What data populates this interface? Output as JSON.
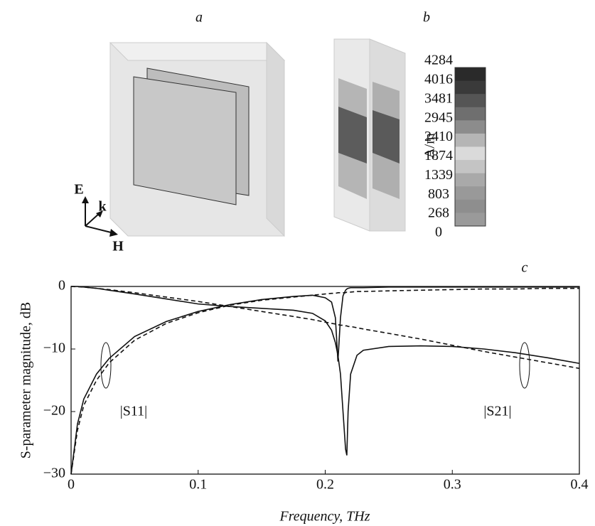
{
  "panels": {
    "a": {
      "label": "a",
      "axes": [
        "E",
        "k",
        "H"
      ]
    },
    "b": {
      "label": "b",
      "colorbar": {
        "unit": "A/m",
        "ticks": [
          4284,
          4016,
          3481,
          2945,
          2410,
          1874,
          1339,
          803,
          268,
          0
        ]
      }
    },
    "c": {
      "label": "c"
    }
  },
  "chart_data": {
    "type": "line",
    "xlabel": "Frequency, THz",
    "ylabel": "S-parameter magnitude, dB",
    "annotations": [
      "|S11|",
      "|S21|"
    ],
    "x": [
      0,
      0.005,
      0.01,
      0.02,
      0.03,
      0.05,
      0.075,
      0.1,
      0.125,
      0.15,
      0.175,
      0.19,
      0.2,
      0.205,
      0.208,
      0.21,
      0.212,
      0.214,
      0.216,
      0.217,
      0.218,
      0.22,
      0.225,
      0.23,
      0.25,
      0.275,
      0.3,
      0.325,
      0.35,
      0.375,
      0.4
    ],
    "series": [
      {
        "color": "#111",
        "dash": false,
        "values": [
          -30,
          -22,
          -18,
          -14,
          -11.5,
          -8,
          -5.6,
          -4,
          -2.9,
          -2.1,
          -1.6,
          -1.4,
          -1.8,
          -2.5,
          -5,
          -12,
          -5,
          -1.5,
          -0.6,
          -0.4,
          -0.3,
          -0.2,
          -0.2,
          -0.2,
          -0.1,
          -0.1,
          -0.1,
          -0.1,
          -0.1,
          -0.1,
          -0.1
        ]
      },
      {
        "color": "#111",
        "dash": true,
        "values": [
          -30,
          -23,
          -19,
          -15,
          -12.2,
          -8.6,
          -5.9,
          -4.2,
          -3,
          -2.2,
          -1.7,
          -1.4,
          -1.2,
          -1.1,
          -1.1,
          -1,
          -1,
          -1,
          -1,
          -0.9,
          -0.9,
          -0.9,
          -0.8,
          -0.8,
          -0.7,
          -0.6,
          -0.5,
          -0.4,
          -0.4,
          -0.3,
          -0.3
        ]
      },
      {
        "color": "#111",
        "dash": false,
        "values": [
          0,
          0,
          -0.1,
          -0.3,
          -0.6,
          -1.2,
          -2,
          -2.8,
          -3.2,
          -3.5,
          -3.8,
          -4.3,
          -5.5,
          -7,
          -9,
          -11,
          -14,
          -20,
          -26,
          -27,
          -20,
          -14,
          -11,
          -10.2,
          -9.6,
          -9.5,
          -9.6,
          -10,
          -10.6,
          -11.4,
          -12.3
        ]
      },
      {
        "color": "#111",
        "dash": true,
        "values": [
          0,
          -0.05,
          -0.1,
          -0.3,
          -0.5,
          -1,
          -1.7,
          -2.4,
          -3.2,
          -4,
          -4.8,
          -5.3,
          -5.7,
          -5.9,
          -6,
          -6.1,
          -6.2,
          -6.2,
          -6.3,
          -6.3,
          -6.4,
          -6.4,
          -6.6,
          -6.8,
          -7.5,
          -8.4,
          -9.4,
          -10.4,
          -11.3,
          -12.2,
          -13.1
        ]
      }
    ],
    "xlim": [
      0,
      0.4
    ],
    "ylim": [
      -30,
      0
    ],
    "xticks": [
      0,
      0.1,
      0.2,
      0.3,
      0.4
    ],
    "yticks": [
      {
        "value": -30,
        "label": "−30"
      },
      {
        "value": -20,
        "label": "−20"
      },
      {
        "value": -10,
        "label": "−10"
      },
      0
    ]
  }
}
